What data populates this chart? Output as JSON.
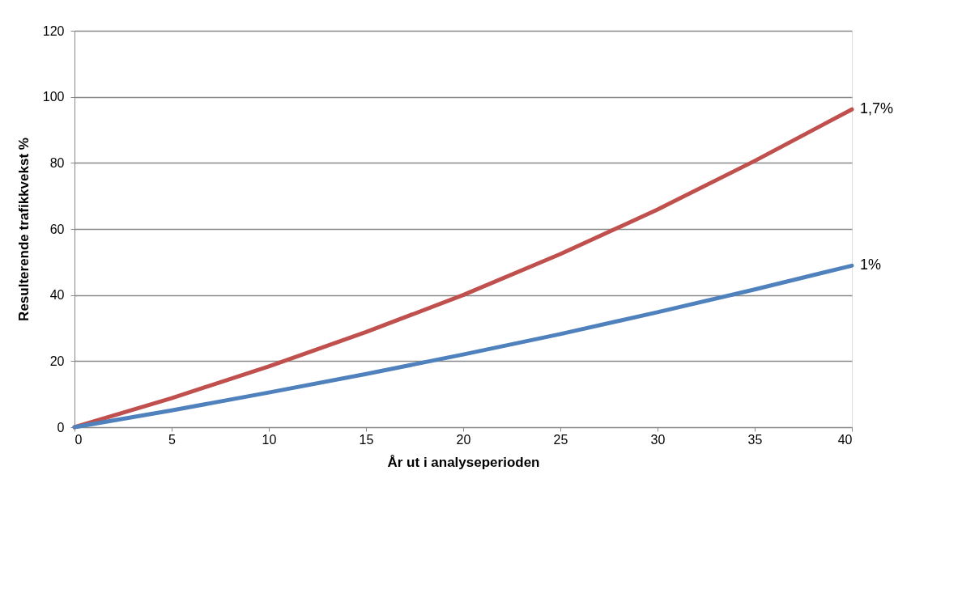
{
  "chart_data": {
    "type": "line",
    "xlabel": "År ut i analyseperioden",
    "ylabel": "Resulterende trafikkvekst %",
    "x": [
      0,
      5,
      10,
      15,
      20,
      25,
      30,
      35,
      40
    ],
    "series": [
      {
        "name": "1,7%",
        "color": "#c0504d",
        "values": [
          0,
          8.8,
          18.4,
          28.8,
          40.0,
          52.4,
          65.9,
          80.6,
          96.2
        ]
      },
      {
        "name": "1%",
        "color": "#4f81bd",
        "values": [
          0,
          5.1,
          10.5,
          16.1,
          22.0,
          28.2,
          34.8,
          41.7,
          48.9
        ]
      }
    ],
    "xlim": [
      0,
      40
    ],
    "xticks": [
      0,
      5,
      10,
      15,
      20,
      25,
      30,
      35,
      40
    ],
    "ylim": [
      0,
      120
    ],
    "yticks": [
      0,
      20,
      40,
      60,
      80,
      100,
      120
    ],
    "grid": "y",
    "legend": false,
    "marker": "none",
    "line_style": "solid"
  }
}
